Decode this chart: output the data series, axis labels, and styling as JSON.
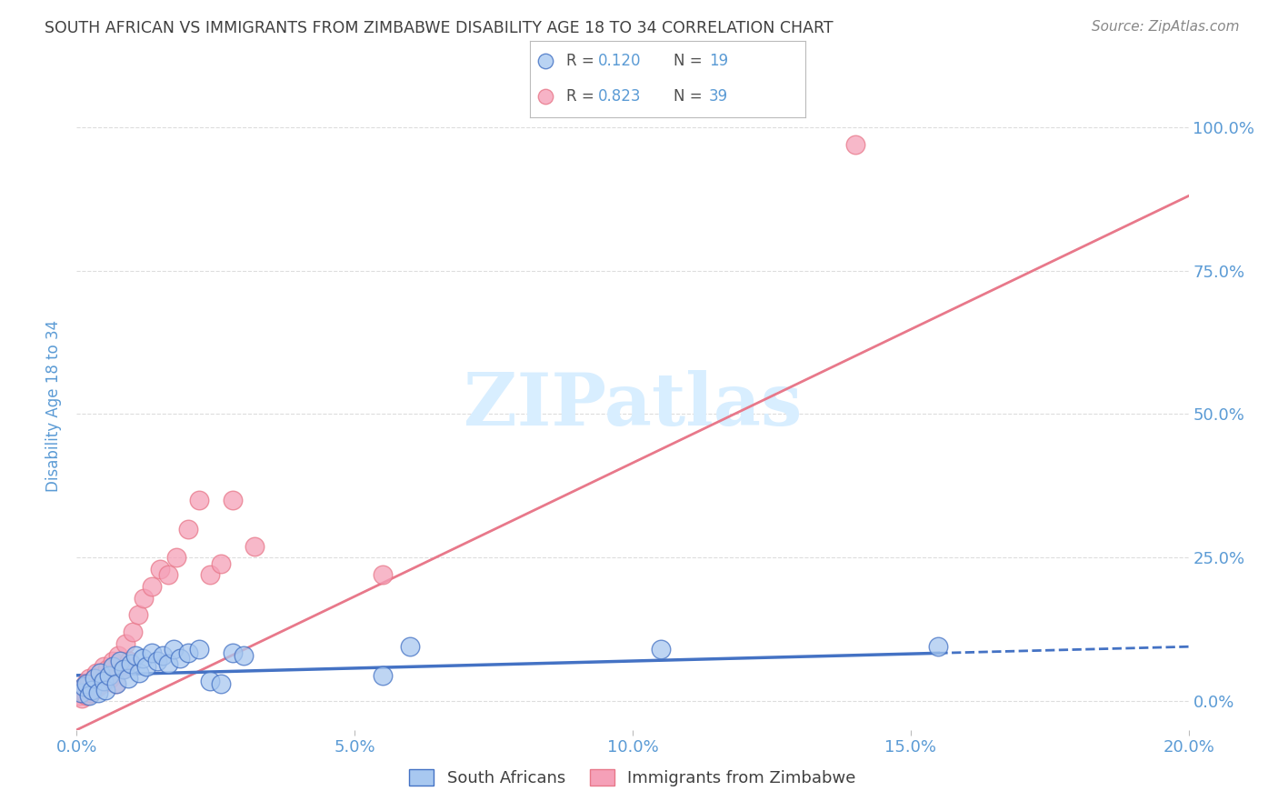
{
  "title": "SOUTH AFRICAN VS IMMIGRANTS FROM ZIMBABWE DISABILITY AGE 18 TO 34 CORRELATION CHART",
  "source": "Source: ZipAtlas.com",
  "ylabel": "Disability Age 18 to 34",
  "x_tick_labels": [
    "0.0%",
    "5.0%",
    "10.0%",
    "15.0%",
    "20.0%"
  ],
  "x_tick_positions": [
    0.0,
    5.0,
    10.0,
    15.0,
    20.0
  ],
  "y_tick_labels_right": [
    "0.0%",
    "25.0%",
    "50.0%",
    "75.0%",
    "100.0%"
  ],
  "y_tick_positions": [
    0.0,
    25.0,
    50.0,
    75.0,
    100.0
  ],
  "xlim": [
    0.0,
    20.0
  ],
  "ylim": [
    -5.0,
    108.0
  ],
  "blue_color": "#A8C8F0",
  "pink_color": "#F5A0B8",
  "blue_line_color": "#4472C4",
  "pink_line_color": "#E8788A",
  "watermark_text": "ZIPatlas",
  "watermark_color": "#D8EEFF",
  "background_color": "#FFFFFF",
  "title_color": "#404040",
  "axis_label_color": "#5B9BD5",
  "grid_color": "#DDDDDD",
  "sa_x": [
    0.08,
    0.12,
    0.18,
    0.22,
    0.28,
    0.32,
    0.38,
    0.42,
    0.48,
    0.52,
    0.58,
    0.65,
    0.72,
    0.78,
    0.85,
    0.92,
    0.98,
    1.05,
    1.12,
    1.18,
    1.25,
    1.35,
    1.45,
    1.55,
    1.65,
    1.75,
    1.85,
    2.0,
    2.2,
    2.4,
    2.6,
    2.8,
    3.0,
    5.5,
    6.0,
    10.5,
    15.5
  ],
  "sa_y": [
    1.5,
    2.5,
    3.0,
    1.0,
    2.0,
    4.0,
    1.5,
    5.0,
    3.5,
    2.0,
    4.5,
    6.0,
    3.0,
    7.0,
    5.5,
    4.0,
    6.5,
    8.0,
    5.0,
    7.5,
    6.0,
    8.5,
    7.0,
    8.0,
    6.5,
    9.0,
    7.5,
    8.5,
    9.0,
    3.5,
    3.0,
    8.5,
    8.0,
    4.5,
    9.5,
    9.0,
    9.5
  ],
  "zim_x": [
    0.05,
    0.08,
    0.1,
    0.12,
    0.15,
    0.18,
    0.2,
    0.22,
    0.25,
    0.28,
    0.3,
    0.35,
    0.38,
    0.42,
    0.45,
    0.48,
    0.52,
    0.55,
    0.6,
    0.65,
    0.7,
    0.75,
    0.82,
    0.88,
    0.95,
    1.0,
    1.1,
    1.2,
    1.35,
    1.5,
    1.65,
    1.8,
    2.0,
    2.2,
    2.4,
    2.6,
    2.8,
    3.2,
    5.5,
    14.0
  ],
  "zim_y": [
    1.0,
    2.0,
    0.5,
    1.5,
    3.0,
    1.0,
    2.5,
    4.0,
    1.5,
    3.5,
    2.0,
    5.0,
    2.5,
    4.5,
    3.0,
    6.0,
    3.5,
    5.5,
    4.0,
    7.0,
    3.0,
    8.0,
    5.5,
    10.0,
    7.0,
    12.0,
    15.0,
    18.0,
    20.0,
    23.0,
    22.0,
    25.0,
    30.0,
    35.0,
    22.0,
    24.0,
    35.0,
    27.0,
    22.0,
    97.0
  ],
  "sa_line_x": [
    0.0,
    20.0
  ],
  "sa_line_y": [
    4.5,
    9.5
  ],
  "zim_line_x": [
    0.0,
    20.0
  ],
  "zim_line_y": [
    -5.0,
    88.0
  ]
}
